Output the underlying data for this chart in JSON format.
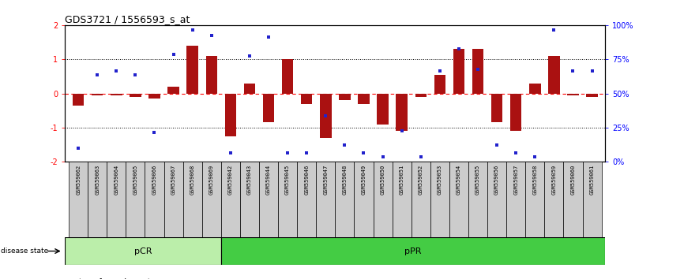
{
  "title": "GDS3721 / 1556593_s_at",
  "samples": [
    "GSM559062",
    "GSM559063",
    "GSM559064",
    "GSM559065",
    "GSM559066",
    "GSM559067",
    "GSM559068",
    "GSM559069",
    "GSM559042",
    "GSM559043",
    "GSM559044",
    "GSM559045",
    "GSM559046",
    "GSM559047",
    "GSM559048",
    "GSM559049",
    "GSM559050",
    "GSM559051",
    "GSM559052",
    "GSM559053",
    "GSM559054",
    "GSM559055",
    "GSM559056",
    "GSM559057",
    "GSM559058",
    "GSM559059",
    "GSM559060",
    "GSM559061"
  ],
  "bar_values": [
    -0.35,
    -0.05,
    -0.05,
    -0.1,
    -0.15,
    0.2,
    1.4,
    1.1,
    -1.25,
    0.3,
    -0.85,
    1.0,
    -0.3,
    -1.3,
    -0.2,
    -0.3,
    -0.9,
    -1.1,
    -0.1,
    0.55,
    1.3,
    1.3,
    -0.85,
    -1.1,
    0.3,
    1.1,
    -0.05,
    -0.1
  ],
  "dot_values": [
    -1.6,
    0.55,
    0.65,
    0.55,
    -1.15,
    1.15,
    1.85,
    1.7,
    -1.75,
    1.1,
    1.65,
    -1.75,
    -1.75,
    -0.65,
    -1.5,
    -1.75,
    -1.85,
    -1.1,
    -1.85,
    0.65,
    1.3,
    0.7,
    -1.5,
    -1.75,
    -1.85,
    1.85,
    0.65,
    0.65
  ],
  "pCR_count": 8,
  "bar_color": "#aa1111",
  "dot_color": "#2222cc",
  "background_color": "#ffffff",
  "pCR_color": "#bbeeaa",
  "pPR_color": "#44cc44",
  "ylim": [
    -2.0,
    2.0
  ],
  "yticks_left": [
    -2,
    -1,
    0,
    1,
    2
  ],
  "ytick_labels_left": [
    "-2",
    "-1",
    "0",
    "1",
    "2"
  ],
  "ytick_labels_right": [
    "0%",
    "25%",
    "50%",
    "75%",
    "100%"
  ]
}
